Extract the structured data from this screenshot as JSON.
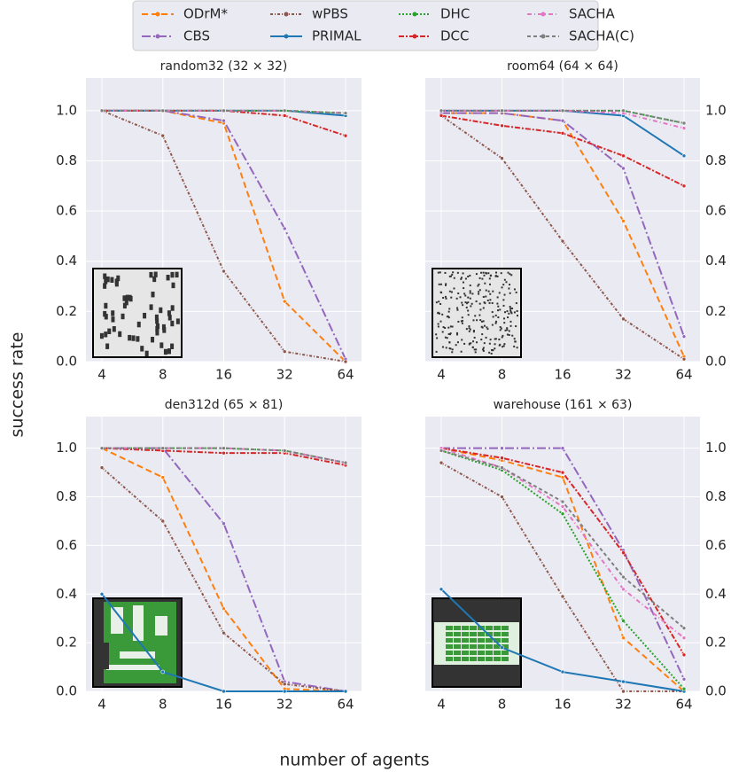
{
  "xlabel": "number of agents",
  "ylabel": "success rate",
  "chart_data": [
    {
      "type": "line",
      "title": "random32 (32 × 32)",
      "categories": [
        "4",
        "8",
        "16",
        "32",
        "64"
      ],
      "ylim": [
        0,
        1.13
      ],
      "yticks": [
        {
          "value": 0,
          "label": "0.0"
        },
        0.2,
        0.4,
        0.6,
        0.8,
        {
          "value": 1,
          "label": "1.0"
        }
      ],
      "series": [
        {
          "name": "ODrM*",
          "color": "#ff7f0e",
          "values": [
            1,
            1,
            0.95,
            0.24,
            0.0
          ]
        },
        {
          "name": "CBS",
          "color": "#9467bd",
          "values": [
            1,
            1,
            0.96,
            0.53,
            0.01
          ]
        },
        {
          "name": "wPBS",
          "color": "#8c564b",
          "values": [
            1,
            0.9,
            0.36,
            0.04,
            0.0
          ]
        },
        {
          "name": "PRIMAL",
          "color": "#1f77b4",
          "values": [
            1,
            1,
            1,
            1,
            0.98
          ]
        },
        {
          "name": "DHC",
          "color": "#2ca02c",
          "values": [
            1,
            1,
            1,
            1,
            0.99
          ]
        },
        {
          "name": "DCC",
          "color": "#d62728",
          "values": [
            1,
            1,
            1,
            0.98,
            0.9
          ]
        },
        {
          "name": "SACHA",
          "color": "#e377c2",
          "values": [
            1,
            1,
            1,
            1,
            0.99
          ]
        },
        {
          "name": "SACHA(C)",
          "color": "#7f7f7f",
          "values": [
            1,
            1,
            1,
            1,
            0.99
          ]
        }
      ]
    },
    {
      "type": "line",
      "title": "room64 (64 × 64)",
      "categories": [
        "4",
        "8",
        "16",
        "32",
        "64"
      ],
      "ylim": [
        0,
        1.13
      ],
      "yticks": [
        {
          "value": 0,
          "label": "0.0"
        },
        0.2,
        0.4,
        0.6,
        0.8,
        {
          "value": 1,
          "label": "1.0"
        }
      ],
      "series": [
        {
          "name": "ODrM*",
          "color": "#ff7f0e",
          "values": [
            0.99,
            0.99,
            0.96,
            0.56,
            0.02
          ]
        },
        {
          "name": "CBS",
          "color": "#9467bd",
          "values": [
            0.99,
            0.99,
            0.96,
            0.77,
            0.1
          ]
        },
        {
          "name": "wPBS",
          "color": "#8c564b",
          "values": [
            0.98,
            0.81,
            0.48,
            0.17,
            0.01
          ]
        },
        {
          "name": "PRIMAL",
          "color": "#1f77b4",
          "values": [
            1,
            1,
            1,
            0.98,
            0.82
          ]
        },
        {
          "name": "DHC",
          "color": "#2ca02c",
          "values": [
            1,
            1,
            1,
            1,
            0.95
          ]
        },
        {
          "name": "DCC",
          "color": "#d62728",
          "values": [
            0.98,
            0.94,
            0.91,
            0.82,
            0.7
          ]
        },
        {
          "name": "SACHA",
          "color": "#e377c2",
          "values": [
            1,
            1,
            1,
            0.99,
            0.93
          ]
        },
        {
          "name": "SACHA(C)",
          "color": "#7f7f7f",
          "values": [
            1,
            1,
            1,
            1,
            0.95
          ]
        }
      ]
    },
    {
      "type": "line",
      "title": "den312d (65 × 81)",
      "categories": [
        "4",
        "8",
        "16",
        "32",
        "64"
      ],
      "ylim": [
        0,
        1.13
      ],
      "yticks": [
        {
          "value": 0,
          "label": "0.0"
        },
        0.2,
        0.4,
        0.6,
        0.8,
        {
          "value": 1,
          "label": "1.0"
        }
      ],
      "series": [
        {
          "name": "ODrM*",
          "color": "#ff7f0e",
          "values": [
            1,
            0.88,
            0.34,
            0.01,
            0.0
          ]
        },
        {
          "name": "CBS",
          "color": "#9467bd",
          "values": [
            1,
            1,
            0.69,
            0.04,
            0.0
          ]
        },
        {
          "name": "wPBS",
          "color": "#8c564b",
          "values": [
            0.92,
            0.7,
            0.24,
            0.03,
            0.0
          ]
        },
        {
          "name": "PRIMAL",
          "color": "#1f77b4",
          "values": [
            0.4,
            0.08,
            0,
            0,
            0
          ]
        },
        {
          "name": "DHC",
          "color": "#2ca02c",
          "values": [
            1,
            1,
            1,
            0.99,
            0.94
          ]
        },
        {
          "name": "DCC",
          "color": "#d62728",
          "values": [
            1,
            0.99,
            0.98,
            0.98,
            0.93
          ]
        },
        {
          "name": "SACHA",
          "color": "#e377c2",
          "values": [
            1,
            1,
            1,
            0.99,
            0.94
          ]
        },
        {
          "name": "SACHA(C)",
          "color": "#7f7f7f",
          "values": [
            1,
            1,
            1,
            0.99,
            0.94
          ]
        }
      ]
    },
    {
      "type": "line",
      "title": "warehouse (161 × 63)",
      "categories": [
        "4",
        "8",
        "16",
        "32",
        "64"
      ],
      "ylim": [
        0,
        1.13
      ],
      "yticks": [
        {
          "value": 0,
          "label": "0.0"
        },
        0.2,
        0.4,
        0.6,
        0.8,
        {
          "value": 1,
          "label": "1.0"
        }
      ],
      "series": [
        {
          "name": "ODrM*",
          "color": "#ff7f0e",
          "values": [
            1,
            0.95,
            0.88,
            0.22,
            0.0
          ]
        },
        {
          "name": "CBS",
          "color": "#9467bd",
          "values": [
            1,
            1,
            1,
            0.58,
            0.05
          ]
        },
        {
          "name": "wPBS",
          "color": "#8c564b",
          "values": [
            0.94,
            0.8,
            0.39,
            0.0,
            0.0
          ]
        },
        {
          "name": "PRIMAL",
          "color": "#1f77b4",
          "values": [
            0.42,
            0.18,
            0.08,
            0.04,
            0.0
          ]
        },
        {
          "name": "DHC",
          "color": "#2ca02c",
          "values": [
            0.99,
            0.91,
            0.73,
            0.29,
            0.01
          ]
        },
        {
          "name": "DCC",
          "color": "#d62728",
          "values": [
            1,
            0.96,
            0.9,
            0.57,
            0.15
          ]
        },
        {
          "name": "SACHA",
          "color": "#e377c2",
          "values": [
            1,
            0.92,
            0.76,
            0.42,
            0.22
          ]
        },
        {
          "name": "SACHA(C)",
          "color": "#7f7f7f",
          "values": [
            0.99,
            0.92,
            0.78,
            0.47,
            0.26
          ]
        }
      ]
    }
  ]
}
